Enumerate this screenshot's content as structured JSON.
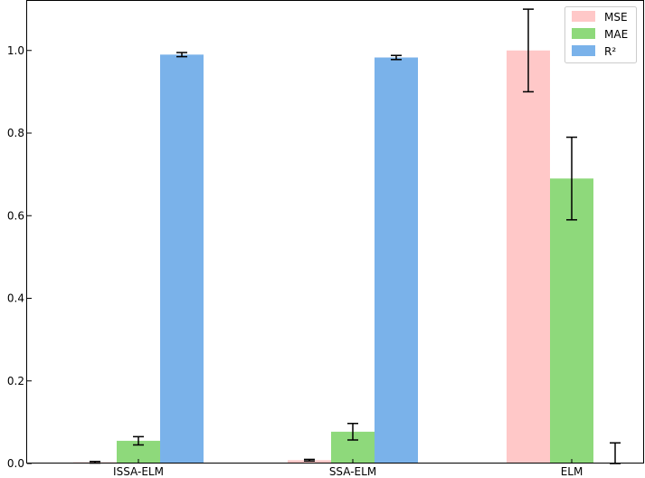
{
  "chart_data": {
    "type": "bar",
    "title": "",
    "xlabel": "",
    "ylabel": "",
    "categories": [
      "ISSA-ELM",
      "SSA-ELM",
      "ELM"
    ],
    "ylim": [
      0,
      1.12
    ],
    "yticks": [
      "0.0",
      "0.2",
      "0.4",
      "0.6",
      "0.8",
      "1.0"
    ],
    "legend_position": "top-right",
    "grid": false,
    "series": [
      {
        "name": "MSE",
        "color": "#ffc8c8",
        "values": [
          0.003,
          0.008,
          1.0
        ],
        "errors": [
          0.002,
          0.002,
          0.1
        ]
      },
      {
        "name": "MAE",
        "color": "#8ed97b",
        "values": [
          0.055,
          0.077,
          0.69
        ],
        "errors": [
          0.01,
          0.02,
          0.1
        ]
      },
      {
        "name": "R²",
        "color": "#7ab2ea",
        "values": [
          0.99,
          0.983,
          0.0
        ],
        "errors": [
          0.005,
          0.005,
          0.05
        ]
      }
    ]
  }
}
